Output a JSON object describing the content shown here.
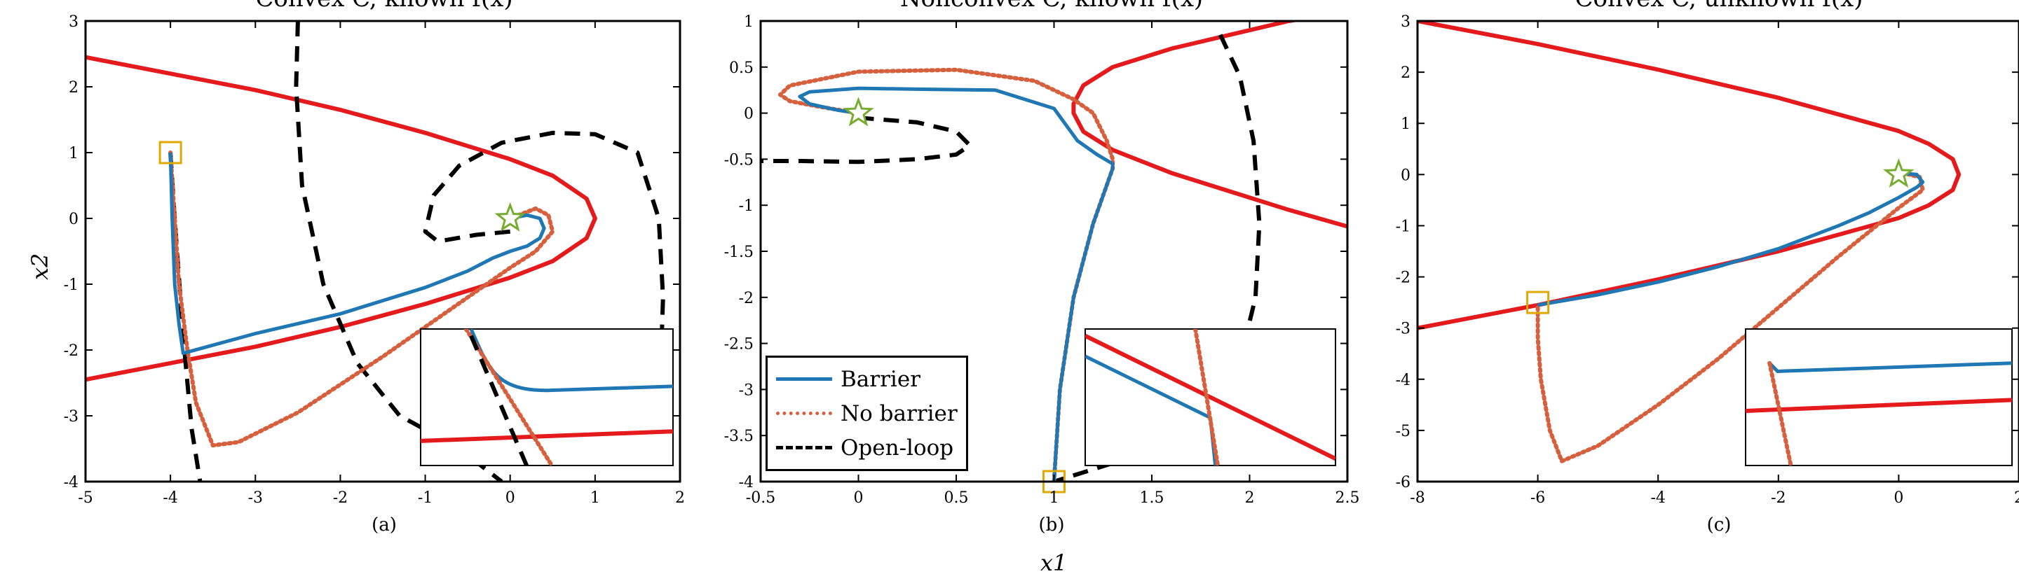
{
  "figure": {
    "xlabel": "x1",
    "ylabel": "x2"
  },
  "legend": {
    "entries": [
      {
        "label": "Barrier",
        "color": "#1f77b4",
        "style": "solid"
      },
      {
        "label": "No barrier",
        "color": "#d6603d",
        "style": "dotted"
      },
      {
        "label": "Open-loop",
        "color": "#000000",
        "style": "dashed"
      }
    ]
  },
  "colors": {
    "barrier": "#1f77b4",
    "no_barrier": "#d6603d",
    "open_loop": "#000000",
    "constraint": "#e41a1c",
    "start_marker": "#e0a800",
    "goal_marker": "#77ac30"
  },
  "chart_data": [
    {
      "type": "line",
      "title": "Convex C, known f(x)",
      "caption": "(a)",
      "xlim": [
        -5,
        2
      ],
      "ylim": [
        -4,
        3
      ],
      "xticks": [
        -5,
        -4,
        -3,
        -2,
        -1,
        0,
        1,
        2
      ],
      "yticks": [
        -4,
        -3,
        -2,
        -1,
        0,
        1,
        2,
        3
      ],
      "start": [
        -4,
        1
      ],
      "goal": [
        0,
        0
      ],
      "series": [
        {
          "name": "Barrier",
          "x": [
            -4,
            -3.98,
            -3.95,
            -3.9,
            -3.85,
            -3.0,
            -2.0,
            -1.0,
            -0.5,
            -0.2,
            0.0,
            0.2,
            0.35,
            0.4,
            0.35,
            0.2,
            0.0
          ],
          "y": [
            1,
            0,
            -1,
            -1.6,
            -2.05,
            -1.75,
            -1.45,
            -1.05,
            -0.8,
            -0.6,
            -0.5,
            -0.42,
            -0.3,
            -0.15,
            0.0,
            0.05,
            0.0
          ]
        },
        {
          "name": "No barrier",
          "x": [
            -4,
            -3.95,
            -3.9,
            -3.8,
            -3.7,
            -3.5,
            -3.2,
            -2.5,
            -1.5,
            -0.5,
            0.0,
            0.3,
            0.5,
            0.45,
            0.3,
            0.1,
            0.0
          ],
          "y": [
            1,
            0,
            -1,
            -2.0,
            -2.8,
            -3.45,
            -3.4,
            -2.95,
            -2.1,
            -1.2,
            -0.75,
            -0.5,
            -0.2,
            0.05,
            0.15,
            0.05,
            0.0
          ]
        },
        {
          "name": "Open-loop",
          "x": [
            -4,
            -3.95,
            -3.85,
            -3.75,
            -3.65
          ],
          "y": [
            1,
            0,
            -1.8,
            -3.2,
            -4.0
          ]
        },
        {
          "name": "Open-loop",
          "x": [
            -2.5,
            -2.52,
            -2.45,
            -2.2,
            -1.8,
            -1.3,
            -0.8,
            -0.4,
            -0.1
          ],
          "y": [
            3.0,
            2.0,
            0.5,
            -1.0,
            -2.2,
            -3.0,
            -3.35,
            -3.7,
            -4.0
          ]
        },
        {
          "name": "Open-loop",
          "x": [
            0.0,
            -0.4,
            -0.85,
            -1.0,
            -0.9,
            -0.6,
            -0.1,
            0.5,
            1.0,
            1.5,
            1.75,
            1.8,
            1.78
          ],
          "y": [
            -0.2,
            -0.25,
            -0.35,
            -0.2,
            0.35,
            0.8,
            1.15,
            1.3,
            1.28,
            1.0,
            0.0,
            -1.2,
            -2.0
          ]
        },
        {
          "name": "Constraint",
          "x": [
            -5,
            -4,
            -3,
            -2,
            -1,
            0,
            0.5,
            0.9,
            1.0,
            0.9,
            0.5,
            0,
            -1,
            -2,
            -3,
            -4,
            -5
          ],
          "y": [
            2.45,
            2.2,
            1.95,
            1.65,
            1.3,
            0.9,
            0.65,
            0.3,
            0.0,
            -0.3,
            -0.65,
            -0.9,
            -1.3,
            -1.65,
            -1.95,
            -2.2,
            -2.45
          ]
        }
      ]
    },
    {
      "type": "line",
      "title": "Nonconvex C, known f(x)",
      "caption": "(b)",
      "xlim": [
        -0.5,
        2.5
      ],
      "ylim": [
        -4,
        1
      ],
      "xticks": [
        -0.5,
        0,
        0.5,
        1,
        1.5,
        2,
        2.5
      ],
      "yticks": [
        -4,
        -3.5,
        -3,
        -2.5,
        -2,
        -1.5,
        -1,
        -0.5,
        0,
        0.5,
        1
      ],
      "start": [
        1,
        -4
      ],
      "goal": [
        0,
        0
      ],
      "series": [
        {
          "name": "Barrier",
          "x": [
            1.0,
            1.03,
            1.1,
            1.2,
            1.3,
            1.3,
            1.22,
            1.12,
            1.0,
            0.7,
            0.3,
            0.0,
            -0.25,
            -0.3,
            -0.25,
            -0.1,
            0.0
          ],
          "y": [
            -4.0,
            -3.0,
            -2.0,
            -1.2,
            -0.6,
            -0.55,
            -0.45,
            -0.3,
            0.05,
            0.25,
            0.26,
            0.27,
            0.23,
            0.18,
            0.1,
            0.03,
            0.0
          ]
        },
        {
          "name": "No barrier",
          "x": [
            1.0,
            1.03,
            1.1,
            1.2,
            1.3,
            1.3,
            1.27,
            1.2,
            1.1,
            0.9,
            0.5,
            0.0,
            -0.35,
            -0.4,
            -0.35,
            -0.2,
            0.0
          ],
          "y": [
            -4.0,
            -3.0,
            -2.0,
            -1.2,
            -0.6,
            -0.5,
            -0.3,
            0.0,
            0.15,
            0.35,
            0.47,
            0.45,
            0.3,
            0.2,
            0.13,
            0.07,
            0.0
          ]
        },
        {
          "name": "Open-loop",
          "x": [
            0.0,
            0.3,
            0.5,
            0.57,
            0.5,
            0.3,
            0.0,
            -0.3,
            -0.5
          ],
          "y": [
            -0.05,
            -0.1,
            -0.2,
            -0.35,
            -0.45,
            -0.5,
            -0.53,
            -0.52,
            -0.52
          ]
        },
        {
          "name": "Open-loop",
          "x": [
            1.85,
            1.95,
            2.02,
            2.05,
            2.03,
            1.95,
            1.8,
            1.6,
            1.3,
            1.0
          ],
          "y": [
            0.85,
            0.4,
            -0.3,
            -1.2,
            -2.0,
            -2.7,
            -3.2,
            -3.55,
            -3.8,
            -4.0
          ]
        },
        {
          "name": "Constraint",
          "x": [
            2.5,
            2.2,
            1.9,
            1.6,
            1.3,
            1.15,
            1.1,
            1.1,
            1.15,
            1.3,
            1.6,
            1.9,
            2.2,
            2.5
          ],
          "y": [
            -1.23,
            -1.05,
            -0.85,
            -0.65,
            -0.4,
            -0.2,
            0.0,
            0.1,
            0.3,
            0.5,
            0.7,
            0.85,
            1.0,
            1.1
          ]
        }
      ]
    },
    {
      "type": "line",
      "title": "Convex C, unknown f(x)",
      "caption": "(c)",
      "xlim": [
        -8,
        2
      ],
      "ylim": [
        -6,
        3
      ],
      "xticks": [
        -8,
        -6,
        -4,
        -2,
        0,
        2
      ],
      "yticks": [
        -6,
        -5,
        -4,
        -3,
        -2,
        -1,
        0,
        1,
        2,
        3
      ],
      "start": [
        -6,
        -2.5
      ],
      "goal": [
        0,
        0
      ],
      "series": [
        {
          "name": "Barrier",
          "x": [
            -6,
            -5,
            -4,
            -3,
            -2,
            -1,
            -0.5,
            0,
            0.3,
            0.4,
            0.3,
            0.1,
            0.0
          ],
          "y": [
            -2.55,
            -2.35,
            -2.1,
            -1.8,
            -1.45,
            -1.0,
            -0.75,
            -0.45,
            -0.25,
            -0.15,
            0.0,
            0.02,
            0.0
          ]
        },
        {
          "name": "No barrier",
          "x": [
            -6,
            -6.0,
            -5.95,
            -5.8,
            -5.6,
            -5.0,
            -4.0,
            -3.0,
            -2.0,
            -1.0,
            0.0,
            0.4,
            0.35,
            0.1,
            0.0
          ],
          "y": [
            -2.6,
            -3.2,
            -4.0,
            -5.0,
            -5.6,
            -5.3,
            -4.5,
            -3.6,
            -2.6,
            -1.6,
            -0.65,
            -0.3,
            -0.05,
            0.02,
            0.0
          ]
        },
        {
          "name": "Constraint",
          "x": [
            -8,
            -6,
            -4,
            -2,
            0,
            0.5,
            0.9,
            1.0,
            0.9,
            0.5,
            0,
            -2,
            -4,
            -6,
            -8
          ],
          "y": [
            3.0,
            2.55,
            2.05,
            1.5,
            0.85,
            0.6,
            0.3,
            0.0,
            -0.3,
            -0.6,
            -0.85,
            -1.5,
            -2.05,
            -2.55,
            -3.0
          ]
        }
      ]
    }
  ]
}
